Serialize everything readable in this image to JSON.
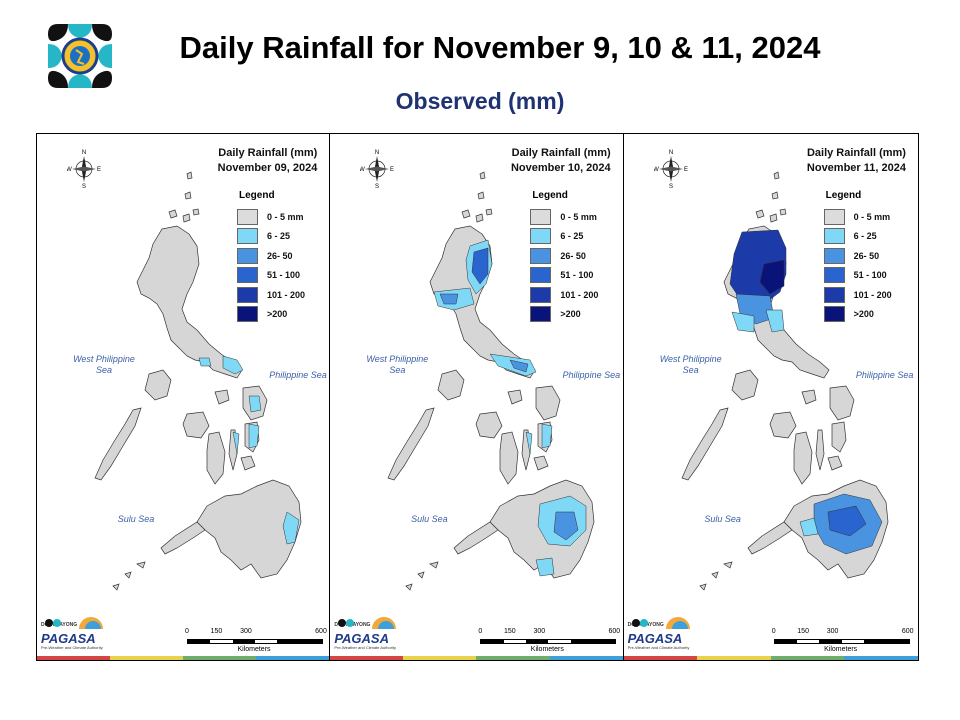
{
  "header": {
    "title": "Daily Rainfall for November 9, 10 & 11, 2024",
    "subtitle": "Observed (mm)"
  },
  "legend": {
    "title": "Legend",
    "items": [
      {
        "label": "0 - 5 mm",
        "color": "#dcdcdc"
      },
      {
        "label": "6 - 25",
        "color": "#7fd8f5"
      },
      {
        "label": "26- 50",
        "color": "#4a93e0"
      },
      {
        "label": "51 - 100",
        "color": "#2a64cf"
      },
      {
        "label": "101 - 200",
        "color": "#1c3aa8"
      },
      {
        "label": ">200",
        "color": "#0a137a"
      }
    ]
  },
  "panels": [
    {
      "title": "Daily Rainfall (mm)",
      "date": "November 09, 2024",
      "intensity": "low"
    },
    {
      "title": "Daily Rainfall (mm)",
      "date": "November 10, 2024",
      "intensity": "medium"
    },
    {
      "title": "Daily Rainfall (mm)",
      "date": "November 11, 2024",
      "intensity": "high"
    }
  ],
  "labels": {
    "west_sea": "West Philippine Sea",
    "philippine_sea": "Philippine Sea",
    "sulu_sea": "Sulu Sea",
    "compass_n": "N",
    "compass_s": "S",
    "compass_w": "W",
    "compass_e": "E",
    "scale_ticks": [
      "0",
      "150",
      "300",
      "600"
    ],
    "scale_unit": "Kilometers",
    "brand": "PAGASA",
    "brand_top": "DOST PAYONG",
    "brand_tagline": "Pre-Weather and Climate Authority"
  },
  "stripe_colors": [
    "#d64545",
    "#e8d24a",
    "#6fae6a",
    "#3ea0d8"
  ]
}
